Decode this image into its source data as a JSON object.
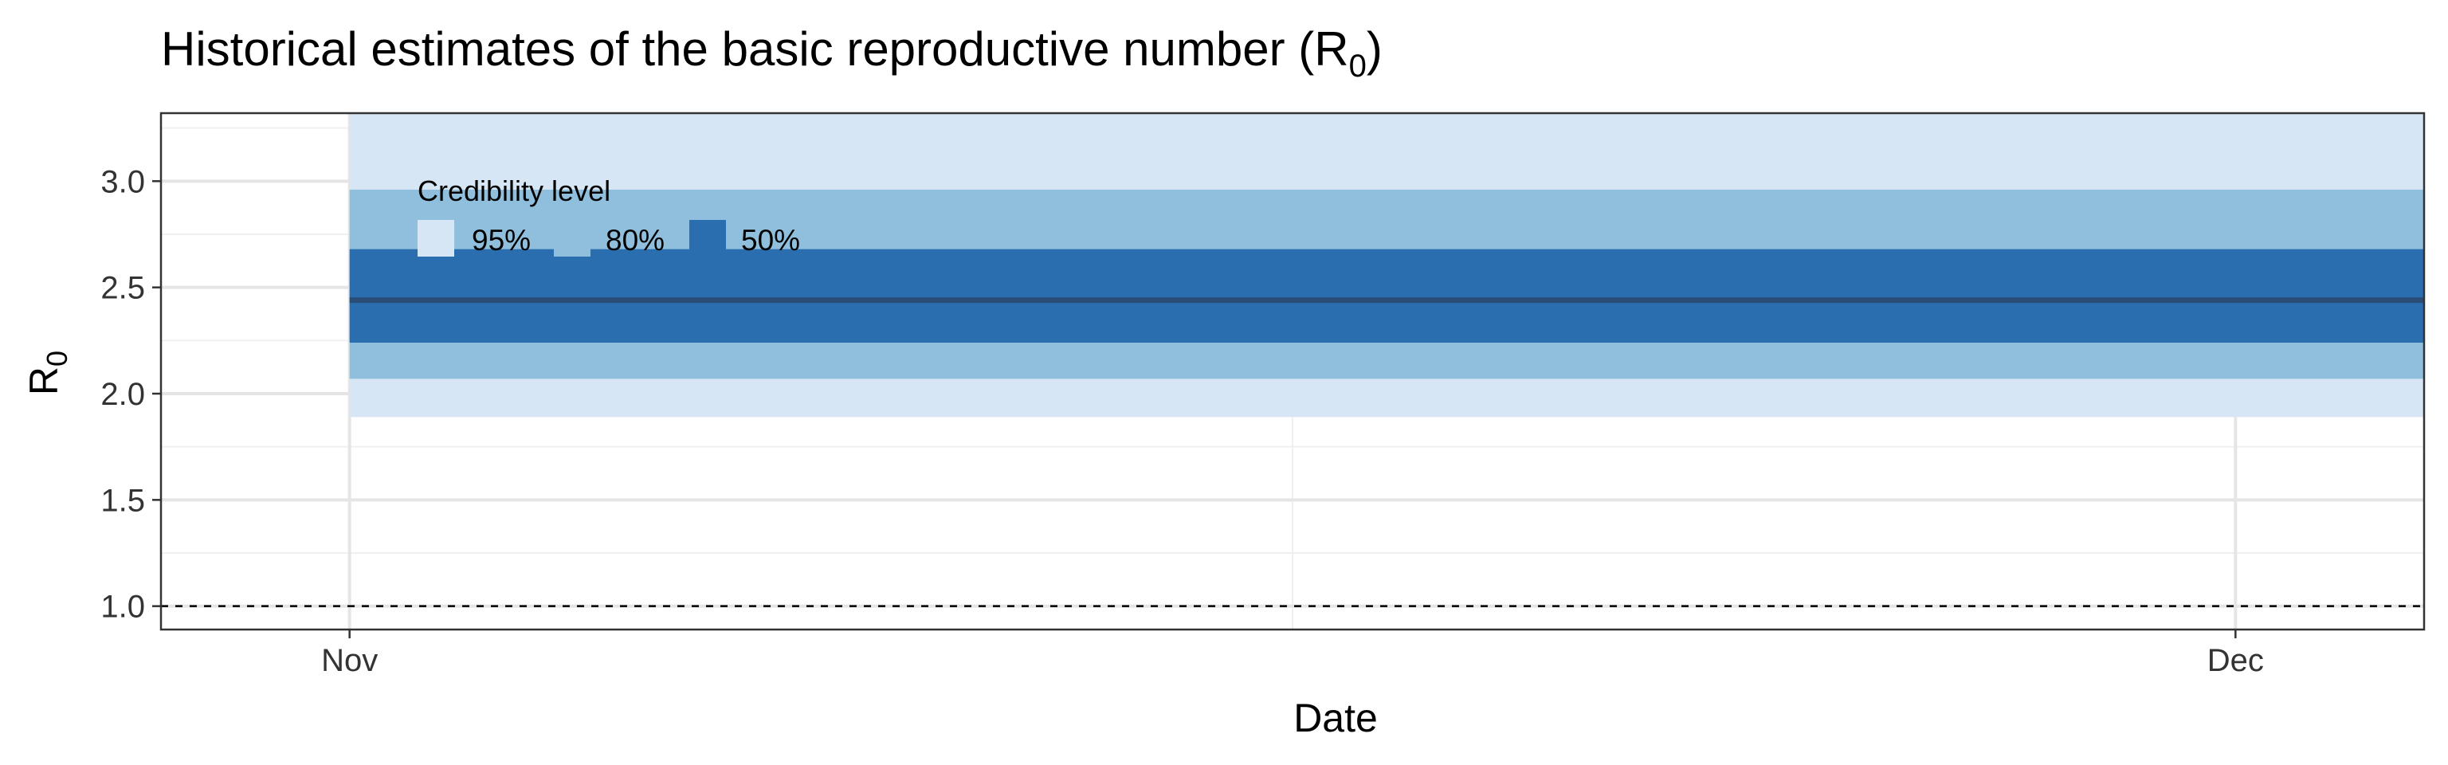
{
  "chart_data": {
    "type": "area",
    "title": "Historical estimates of the basic reproductive number (R",
    "title_subscript": "0",
    "title_suffix": ")",
    "xlabel": "Date",
    "ylabel": "R",
    "ylabel_subscript": "0",
    "x_range": [
      "2019-10-29",
      "2019-12-04"
    ],
    "x_ticks": [
      {
        "date": "2019-11-01",
        "label": "Nov"
      },
      {
        "date": "2019-12-01",
        "label": "Dec"
      }
    ],
    "ylim": [
      0.89,
      3.32
    ],
    "y_ticks": [
      {
        "value": 1.0,
        "label": "1.0"
      },
      {
        "value": 1.5,
        "label": "1.5"
      },
      {
        "value": 2.0,
        "label": "2.0"
      },
      {
        "value": 2.5,
        "label": "2.5"
      },
      {
        "value": 3.0,
        "label": "3.0"
      }
    ],
    "y_minor_ticks": [
      1.25,
      1.75,
      2.25,
      2.75,
      3.25
    ],
    "x_minor_ticks": [
      "2019-11-16"
    ],
    "grid": true,
    "series": {
      "x_start": "2019-11-01",
      "x_end": "2019-12-05",
      "median": 2.44,
      "bands": [
        {
          "level": "95%",
          "lower": 1.89,
          "upper": 3.34,
          "color": "#d6e6f4"
        },
        {
          "level": "80%",
          "lower": 2.07,
          "upper": 2.96,
          "color": "#8fbfdd"
        },
        {
          "level": "50%",
          "lower": 2.24,
          "upper": 2.68,
          "color": "#2b6eaf"
        }
      ],
      "median_color": "#2a4d78"
    },
    "reference_line": {
      "value": 1.0,
      "style": "dashed"
    },
    "legend": {
      "title": "Credibility level",
      "placement": "top-left",
      "items": [
        "95%",
        "80%",
        "50%"
      ]
    }
  }
}
